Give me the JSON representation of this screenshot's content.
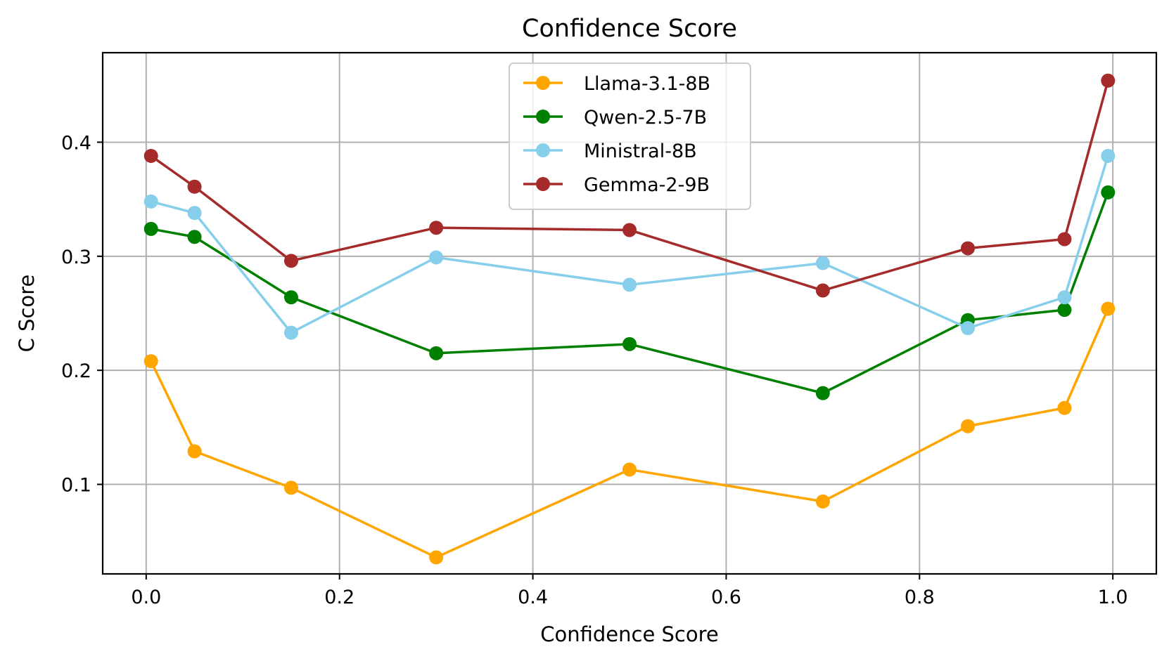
{
  "chart_data": {
    "type": "line",
    "title": "Confidence Score",
    "xlabel": "Confidence Score",
    "ylabel": "C Score",
    "xlim": [
      -0.045,
      1.045
    ],
    "ylim": [
      0.0215,
      0.4785
    ],
    "xticks": [
      0.0,
      0.2,
      0.4,
      0.6,
      0.8,
      1.0
    ],
    "xtick_labels": [
      "0.0",
      "0.2",
      "0.4",
      "0.6",
      "0.8",
      "1.0"
    ],
    "yticks": [
      0.1,
      0.2,
      0.3,
      0.4
    ],
    "ytick_labels": [
      "0.1",
      "0.2",
      "0.3",
      "0.4"
    ],
    "grid": true,
    "legend_position": "upper center",
    "x": [
      0.005,
      0.05,
      0.15,
      0.3,
      0.5,
      0.7,
      0.85,
      0.95,
      0.995
    ],
    "series": [
      {
        "name": "Llama-3.1-8B",
        "color": "#FFA500",
        "values": [
          0.208,
          0.129,
          0.097,
          0.036,
          0.113,
          0.085,
          0.151,
          0.167,
          0.254
        ]
      },
      {
        "name": "Qwen-2.5-7B",
        "color": "#008000",
        "values": [
          0.324,
          0.317,
          0.264,
          0.215,
          0.223,
          0.18,
          0.244,
          0.253,
          0.356
        ]
      },
      {
        "name": "Ministral-8B",
        "color": "#87CEEB",
        "values": [
          0.348,
          0.338,
          0.233,
          0.299,
          0.275,
          0.294,
          0.237,
          0.264,
          0.388
        ]
      },
      {
        "name": "Gemma-2-9B",
        "color": "#A52A2A",
        "values": [
          0.388,
          0.361,
          0.296,
          0.325,
          0.323,
          0.27,
          0.307,
          0.315,
          0.454
        ]
      }
    ]
  }
}
